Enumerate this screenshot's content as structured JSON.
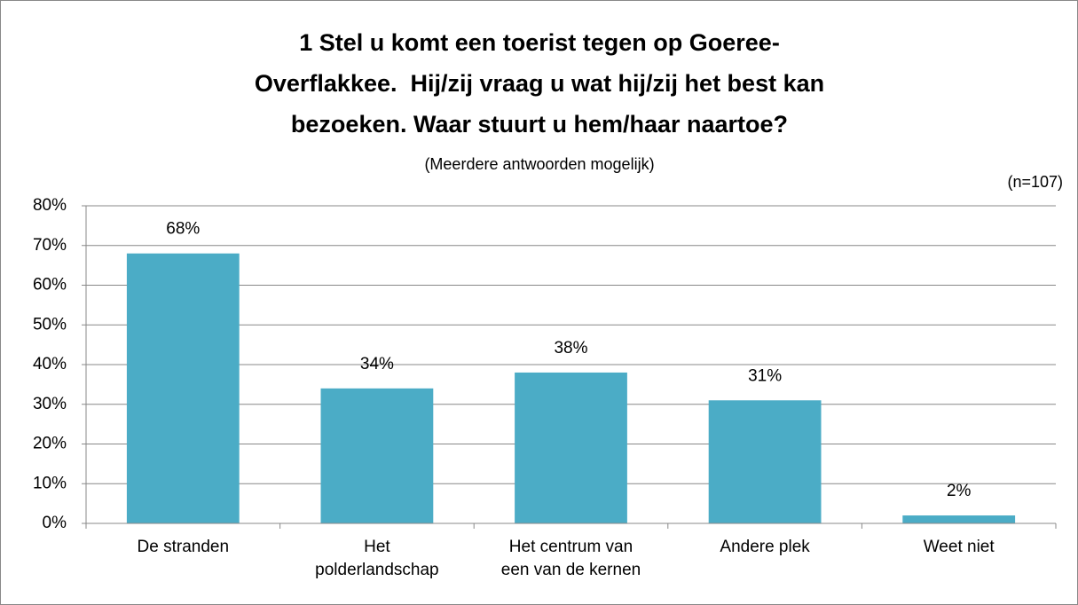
{
  "chart_data": {
    "type": "bar",
    "title": [
      "1 Stel u komt een toerist tegen op Goeree-",
      "Overflakkee.  Hij/zij vraag u wat hij/zij het best kan",
      "bezoeken. Waar stuurt u hem/haar naartoe?"
    ],
    "subtitle": "(Meerdere antwoorden mogelijk)",
    "annotation": "(n=107)",
    "categories": [
      "De stranden",
      "Het\npolderlandschap",
      "Het centrum van\neen van de kernen",
      "Andere plek",
      "Weet niet"
    ],
    "values": [
      68,
      34,
      38,
      31,
      2
    ],
    "value_labels": [
      "68%",
      "34%",
      "38%",
      "31%",
      "2%"
    ],
    "color": "#4bacc6",
    "ylim": [
      0,
      80
    ],
    "yticks": [
      {
        "value": 0,
        "label": "0%"
      },
      {
        "value": 10,
        "label": "10%"
      },
      {
        "value": 20,
        "label": "20%"
      },
      {
        "value": 30,
        "label": "30%"
      },
      {
        "value": 40,
        "label": "40%"
      },
      {
        "value": 50,
        "label": "50%"
      },
      {
        "value": 60,
        "label": "60%"
      },
      {
        "value": 70,
        "label": "70%"
      },
      {
        "value": 80,
        "label": "80%"
      }
    ],
    "grid": true
  }
}
